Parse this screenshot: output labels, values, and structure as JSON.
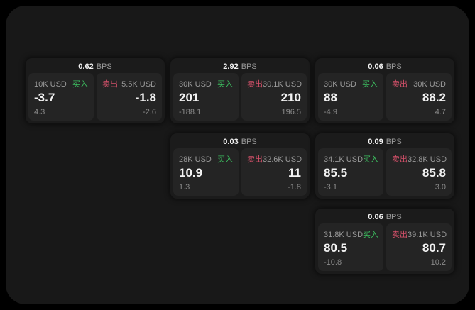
{
  "window": {
    "outer_bg": "#000000",
    "bg": "#181818"
  },
  "colors": {
    "card_bg": "#1b1b1b",
    "panel_bg": "#242424",
    "text_primary": "#f2f2f2",
    "text_secondary": "#9a9a9a",
    "text_muted": "#8a8a8a",
    "buy_green": "#3cbe5f",
    "sell_red": "#d25069"
  },
  "labels": {
    "bps": "BPS",
    "buy": "买入",
    "sell": "卖出"
  },
  "cards": [
    {
      "row": 1,
      "col": 1,
      "bps": "0.62",
      "buy": {
        "amount": "10K USD",
        "value": "-3.7",
        "delta": "4.3"
      },
      "sell": {
        "amount": "5.5K USD",
        "value": "-1.8",
        "delta": "-2.6"
      }
    },
    {
      "row": 1,
      "col": 2,
      "bps": "2.92",
      "buy": {
        "amount": "30K USD",
        "value": "201",
        "delta": "-188.1"
      },
      "sell": {
        "amount": "30.1K USD",
        "value": "210",
        "delta": "196.5"
      }
    },
    {
      "row": 1,
      "col": 3,
      "bps": "0.06",
      "buy": {
        "amount": "30K USD",
        "value": "88",
        "delta": "-4.9"
      },
      "sell": {
        "amount": "30K USD",
        "value": "88.2",
        "delta": "4.7"
      }
    },
    {
      "row": 2,
      "col": 2,
      "bps": "0.03",
      "buy": {
        "amount": "28K USD",
        "value": "10.9",
        "delta": "1.3"
      },
      "sell": {
        "amount": "32.6K USD",
        "value": "11",
        "delta": "-1.8"
      }
    },
    {
      "row": 2,
      "col": 3,
      "bps": "0.09",
      "buy": {
        "amount": "34.1K USD",
        "value": "85.5",
        "delta": "-3.1"
      },
      "sell": {
        "amount": "32.8K USD",
        "value": "85.8",
        "delta": "3.0"
      }
    },
    {
      "row": 3,
      "col": 3,
      "bps": "0.06",
      "buy": {
        "amount": "31.8K USD",
        "value": "80.5",
        "delta": "-10.8"
      },
      "sell": {
        "amount": "39.1K USD",
        "value": "80.7",
        "delta": "10.2"
      }
    }
  ]
}
